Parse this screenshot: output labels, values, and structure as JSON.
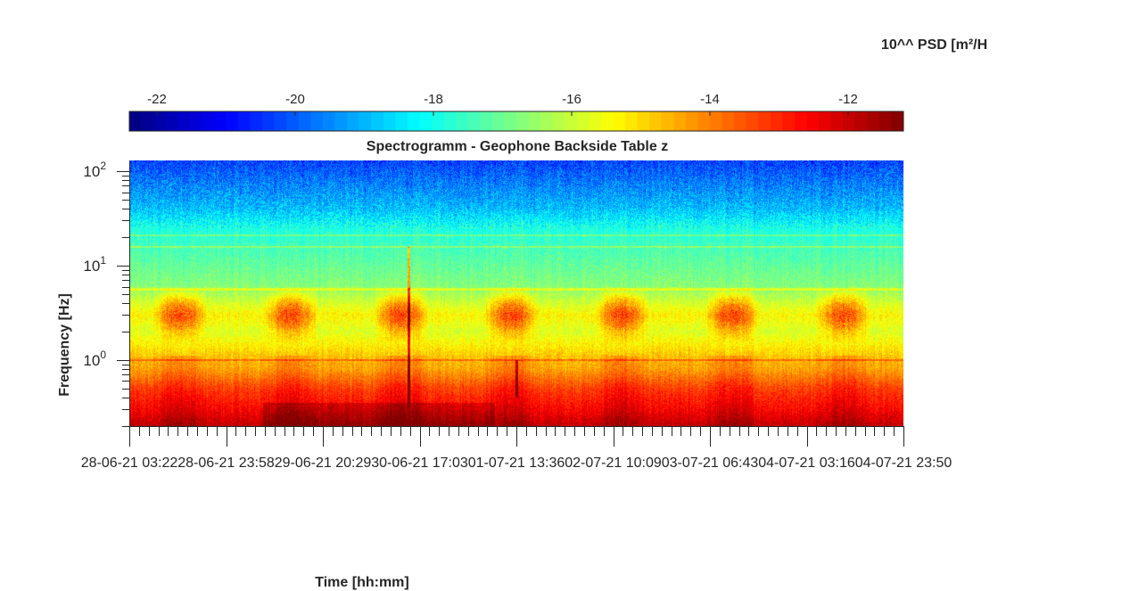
{
  "chart_data": {
    "type": "heatmap",
    "title": "Spectrogramm - Geophone Backside Table z",
    "xlabel": "Time [hh:mm]",
    "ylabel": "Frequency [Hz]",
    "y_scale": "log",
    "ylim": [
      0.2,
      130
    ],
    "y_ticks": [
      1,
      10,
      100
    ],
    "y_tick_labels": [
      {
        "base": "10",
        "exp": "0"
      },
      {
        "base": "10",
        "exp": "1"
      },
      {
        "base": "10",
        "exp": "2"
      }
    ],
    "x_tick_labels": [
      "28-06-21 03:22",
      "28-06-21 23:58",
      "29-06-21 20:29",
      "30-06-21 17:03",
      "01-07-21 13:36",
      "02-07-21 10:09",
      "03-07-21 06:43",
      "04-07-21 03:16",
      "04-07-21 23:50"
    ],
    "colorbar": {
      "label": "10^^ PSD [m²/H",
      "range": [
        -22.4,
        -11.2
      ],
      "ticks": [
        -22,
        -20,
        -18,
        -16,
        -14,
        -12
      ],
      "colormap": "jet",
      "location": "top"
    },
    "log10_psd_profile": [
      {
        "freq_hz": 0.2,
        "value": -11.9
      },
      {
        "freq_hz": 0.3,
        "value": -12.6
      },
      {
        "freq_hz": 0.5,
        "value": -13.3
      },
      {
        "freq_hz": 0.8,
        "value": -14.4
      },
      {
        "freq_hz": 1.0,
        "value": -14.6
      },
      {
        "freq_hz": 2.0,
        "value": -15.8
      },
      {
        "freq_hz": 3.0,
        "value": -15.3
      },
      {
        "freq_hz": 6.0,
        "value": -16.7
      },
      {
        "freq_hz": 15.0,
        "value": -17.4
      },
      {
        "freq_hz": 25.0,
        "value": -17.9
      },
      {
        "freq_hz": 40.0,
        "value": -18.9
      },
      {
        "freq_hz": 80.0,
        "value": -19.7
      },
      {
        "freq_hz": 130.0,
        "value": -20.3
      }
    ],
    "daytime_activity_band_hz": [
      1.5,
      6
    ],
    "daytime_activity_peak": -13.6,
    "spectral_lines_hz": [
      1.0,
      5.6,
      15.8,
      21.0
    ]
  }
}
